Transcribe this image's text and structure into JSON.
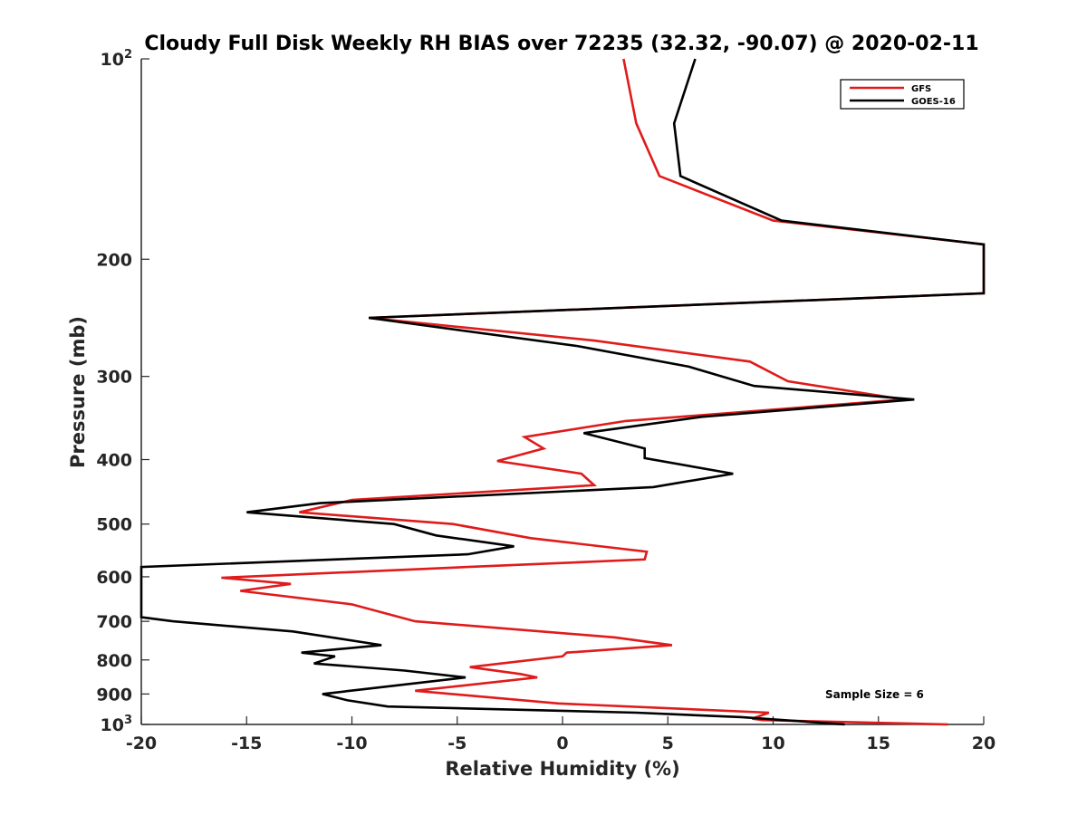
{
  "chart_data": {
    "type": "line",
    "title": "Cloudy Full Disk Weekly RH BIAS over 72235 (32.32, -90.07) @ 2020-02-11",
    "xlabel": "Relative Humidity (%)",
    "ylabel": "Pressure (mb)",
    "xlim": [
      -20,
      20
    ],
    "ylim": [
      100,
      1000
    ],
    "yscale": "log",
    "yreversed": true,
    "grid": false,
    "legend_position": "top-right",
    "x_ticks": [
      -20,
      -15,
      -10,
      -5,
      0,
      5,
      10,
      15,
      20
    ],
    "x_tick_labels": [
      "-20",
      "-15",
      "-10",
      "-5",
      "0",
      "5",
      "10",
      "15",
      "20"
    ],
    "y_ticks": [
      100,
      200,
      300,
      400,
      500,
      600,
      700,
      800,
      900,
      1000
    ],
    "y_tick_labels": [
      {
        "base": "10",
        "exp": "2"
      },
      {
        "base": "200",
        "exp": ""
      },
      {
        "base": "300",
        "exp": ""
      },
      {
        "base": "400",
        "exp": ""
      },
      {
        "base": "500",
        "exp": ""
      },
      {
        "base": "600",
        "exp": ""
      },
      {
        "base": "700",
        "exp": ""
      },
      {
        "base": "800",
        "exp": ""
      },
      {
        "base": "900",
        "exp": ""
      },
      {
        "base": "10",
        "exp": "3"
      }
    ],
    "annotation": "Sample Size = 6",
    "series": [
      {
        "name": "GFS",
        "color": "#e01b1b",
        "points": [
          [
            2.9,
            100
          ],
          [
            3.5,
            125
          ],
          [
            4.6,
            150
          ],
          [
            10.0,
            175
          ],
          [
            20.0,
            190
          ],
          [
            20.0,
            225
          ],
          [
            -9.2,
            245
          ],
          [
            1.5,
            265
          ],
          [
            8.9,
            285
          ],
          [
            10.7,
            305
          ],
          [
            16.2,
            325
          ],
          [
            3.0,
            350
          ],
          [
            -1.8,
            370
          ],
          [
            -0.9,
            385
          ],
          [
            -3.1,
            402
          ],
          [
            0.9,
            420
          ],
          [
            1.5,
            437
          ],
          [
            -10.0,
            460
          ],
          [
            -12.5,
            480
          ],
          [
            -5.2,
            500
          ],
          [
            -1.5,
            525
          ],
          [
            4.0,
            550
          ],
          [
            3.9,
            565
          ],
          [
            -4.5,
            580
          ],
          [
            -16.2,
            602
          ],
          [
            -12.9,
            615
          ],
          [
            -15.3,
            630
          ],
          [
            -10.0,
            660
          ],
          [
            -7.0,
            700
          ],
          [
            2.5,
            740
          ],
          [
            5.2,
            760
          ],
          [
            0.2,
            780
          ],
          [
            0.0,
            790
          ],
          [
            -4.4,
            820
          ],
          [
            -2.0,
            840
          ],
          [
            -1.2,
            850
          ],
          [
            -7.0,
            890
          ],
          [
            -0.2,
            930
          ],
          [
            9.8,
            960
          ],
          [
            9.0,
            980
          ],
          [
            9.5,
            985
          ],
          [
            18.3,
            1000
          ]
        ]
      },
      {
        "name": "GOES-16",
        "color": "#000000",
        "points": [
          [
            6.3,
            100
          ],
          [
            5.3,
            125
          ],
          [
            5.6,
            150
          ],
          [
            10.4,
            175
          ],
          [
            20.0,
            190
          ],
          [
            20.0,
            225
          ],
          [
            -9.2,
            245
          ],
          [
            0.7,
            270
          ],
          [
            6.0,
            290
          ],
          [
            9.1,
            310
          ],
          [
            16.7,
            325
          ],
          [
            6.6,
            345
          ],
          [
            1.0,
            365
          ],
          [
            3.9,
            385
          ],
          [
            3.9,
            398
          ],
          [
            8.1,
            420
          ],
          [
            4.3,
            440
          ],
          [
            -11.5,
            465
          ],
          [
            -15.0,
            480
          ],
          [
            -8.0,
            500
          ],
          [
            -6.0,
            520
          ],
          [
            -2.3,
            540
          ],
          [
            -4.5,
            555
          ],
          [
            -20.0,
            580
          ],
          [
            -20.0,
            690
          ],
          [
            -18.5,
            700
          ],
          [
            -12.8,
            725
          ],
          [
            -8.6,
            760
          ],
          [
            -12.4,
            780
          ],
          [
            -10.8,
            790
          ],
          [
            -11.8,
            810
          ],
          [
            -7.5,
            830
          ],
          [
            -4.6,
            850
          ],
          [
            -11.4,
            900
          ],
          [
            -10.2,
            920
          ],
          [
            -8.3,
            940
          ],
          [
            3.5,
            960
          ],
          [
            8.5,
            975
          ],
          [
            13.4,
            1000
          ]
        ]
      }
    ]
  }
}
